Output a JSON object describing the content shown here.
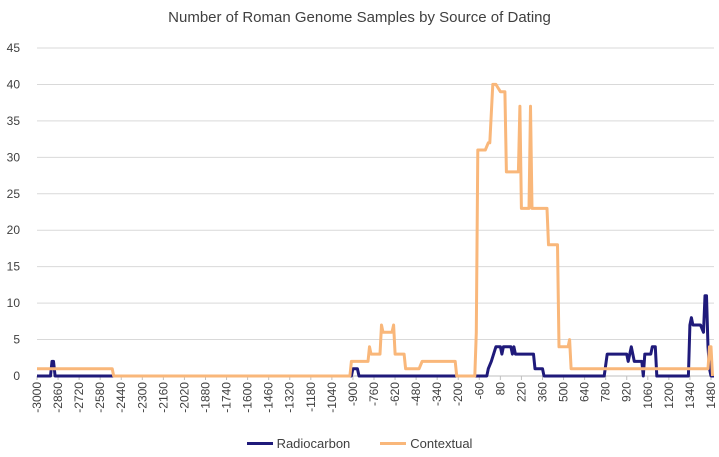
{
  "chart_data": {
    "type": "line",
    "title": "Number of Roman Genome Samples by Source of Dating",
    "xlabel": "",
    "ylabel": "",
    "ylim": [
      0,
      45
    ],
    "yticks": [
      0,
      5,
      10,
      15,
      20,
      25,
      30,
      35,
      40,
      45
    ],
    "xlim": [
      -3000,
      1500
    ],
    "xtick_labels": [
      "-3000",
      "-2860",
      "-2720",
      "-2580",
      "-2440",
      "-2300",
      "-2160",
      "-2020",
      "-1880",
      "-1740",
      "-1600",
      "-1460",
      "-1320",
      "-1180",
      "-1040",
      "-900",
      "-760",
      "-620",
      "-480",
      "-340",
      "-200",
      "-60",
      "80",
      "220",
      "360",
      "500",
      "640",
      "780",
      "920",
      "1060",
      "1200",
      "1340",
      "1480"
    ],
    "grid": true,
    "legend_position": "bottom",
    "series": [
      {
        "name": "Radiocarbon",
        "color": "#1f1a7a",
        "points": [
          [
            -3000,
            0
          ],
          [
            -2910,
            0
          ],
          [
            -2900,
            2
          ],
          [
            -2890,
            2
          ],
          [
            -2880,
            0
          ],
          [
            -910,
            0
          ],
          [
            -900,
            1
          ],
          [
            -870,
            1
          ],
          [
            -860,
            0
          ],
          [
            -50,
            0
          ],
          [
            -40,
            0
          ],
          [
            -10,
            0
          ],
          [
            0,
            1
          ],
          [
            20,
            2
          ],
          [
            50,
            4
          ],
          [
            80,
            4
          ],
          [
            90,
            3
          ],
          [
            100,
            4
          ],
          [
            150,
            4
          ],
          [
            160,
            3
          ],
          [
            170,
            4
          ],
          [
            180,
            3
          ],
          [
            200,
            3
          ],
          [
            220,
            3
          ],
          [
            230,
            3
          ],
          [
            300,
            3
          ],
          [
            310,
            1
          ],
          [
            360,
            1
          ],
          [
            370,
            0
          ],
          [
            640,
            0
          ],
          [
            770,
            0
          ],
          [
            790,
            3
          ],
          [
            880,
            3
          ],
          [
            920,
            3
          ],
          [
            930,
            2
          ],
          [
            950,
            4
          ],
          [
            970,
            2
          ],
          [
            1020,
            2
          ],
          [
            1030,
            0
          ],
          [
            1040,
            3
          ],
          [
            1080,
            3
          ],
          [
            1090,
            4
          ],
          [
            1110,
            4
          ],
          [
            1120,
            0
          ],
          [
            1330,
            0
          ],
          [
            1340,
            7
          ],
          [
            1350,
            8
          ],
          [
            1360,
            7
          ],
          [
            1400,
            7
          ],
          [
            1410,
            7
          ],
          [
            1430,
            6
          ],
          [
            1440,
            11
          ],
          [
            1450,
            11
          ],
          [
            1460,
            4
          ],
          [
            1470,
            1
          ],
          [
            1480,
            0
          ],
          [
            1500,
            0
          ]
        ]
      },
      {
        "name": "Contextual",
        "color": "#f9b77a",
        "points": [
          [
            -3000,
            1
          ],
          [
            -2500,
            1
          ],
          [
            -2490,
            0
          ],
          [
            -920,
            0
          ],
          [
            -910,
            2
          ],
          [
            -800,
            2
          ],
          [
            -790,
            4
          ],
          [
            -780,
            3
          ],
          [
            -720,
            3
          ],
          [
            -710,
            7
          ],
          [
            -700,
            6
          ],
          [
            -640,
            6
          ],
          [
            -630,
            7
          ],
          [
            -620,
            3
          ],
          [
            -560,
            3
          ],
          [
            -550,
            1
          ],
          [
            -480,
            1
          ],
          [
            -460,
            1
          ],
          [
            -440,
            2
          ],
          [
            -330,
            2
          ],
          [
            -220,
            2
          ],
          [
            -210,
            0
          ],
          [
            -90,
            0
          ],
          [
            -80,
            6
          ],
          [
            -70,
            31
          ],
          [
            -60,
            31
          ],
          [
            -20,
            31
          ],
          [
            0,
            32
          ],
          [
            10,
            32
          ],
          [
            30,
            40
          ],
          [
            50,
            40
          ],
          [
            80,
            39
          ],
          [
            110,
            39
          ],
          [
            120,
            28
          ],
          [
            180,
            28
          ],
          [
            200,
            28
          ],
          [
            210,
            37
          ],
          [
            220,
            23
          ],
          [
            270,
            23
          ],
          [
            280,
            37
          ],
          [
            290,
            23
          ],
          [
            300,
            23
          ],
          [
            360,
            23
          ],
          [
            390,
            23
          ],
          [
            400,
            18
          ],
          [
            460,
            18
          ],
          [
            470,
            4
          ],
          [
            530,
            4
          ],
          [
            540,
            5
          ],
          [
            550,
            1
          ],
          [
            700,
            1
          ],
          [
            1000,
            1
          ],
          [
            1460,
            1
          ],
          [
            1470,
            4
          ],
          [
            1480,
            4
          ],
          [
            1490,
            0
          ]
        ]
      }
    ]
  }
}
